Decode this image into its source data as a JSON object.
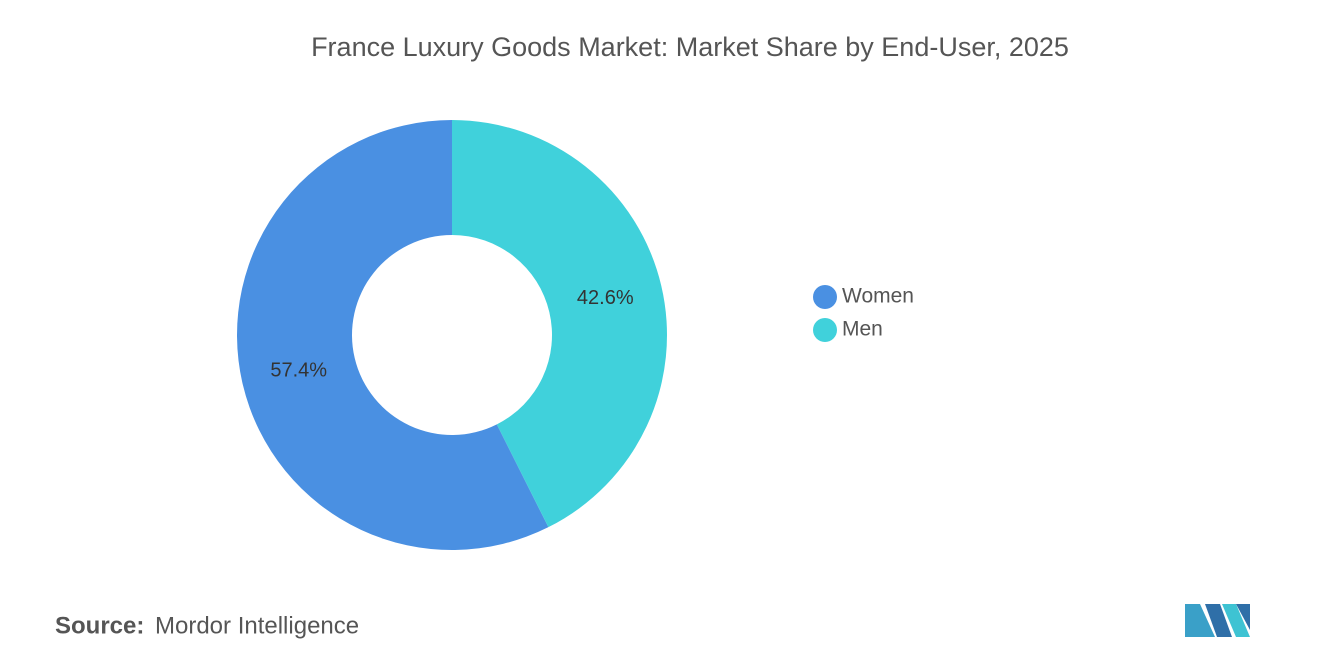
{
  "chart_data": {
    "type": "pie",
    "title": "France Luxury Goods Market: Market Share by End-User, 2025",
    "categories": [
      "Women",
      "Men"
    ],
    "values": [
      57.4,
      42.6
    ],
    "value_labels": [
      "57.4%",
      "42.6%"
    ],
    "colors": [
      "#4a90e2",
      "#40d1db"
    ],
    "donut": true,
    "legend": "right"
  },
  "source": {
    "label": "Source:",
    "text": "Mordor Intelligence"
  }
}
